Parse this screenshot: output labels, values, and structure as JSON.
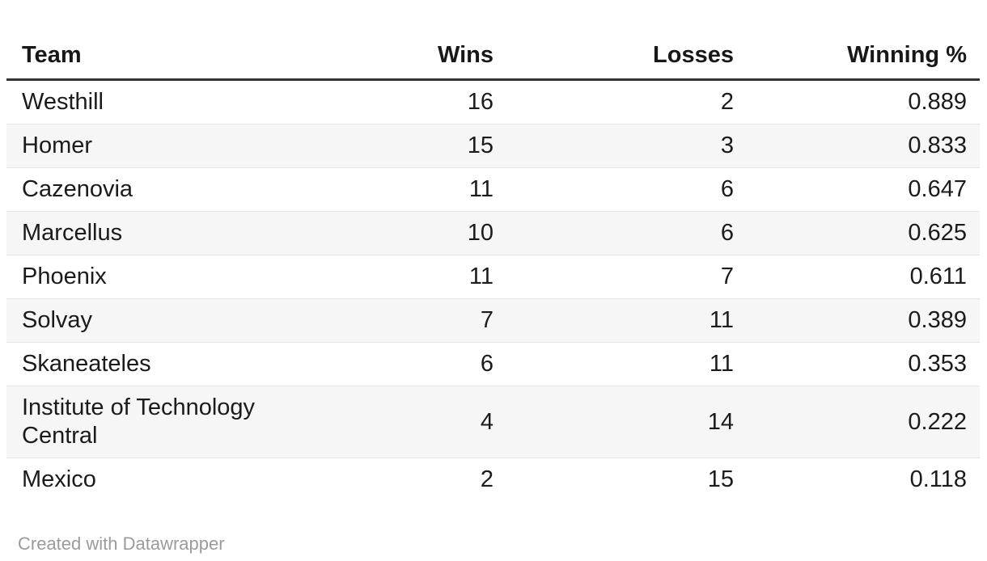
{
  "chart_data": {
    "type": "table",
    "columns": [
      "Team",
      "Wins",
      "Losses",
      "Winning %"
    ],
    "rows": [
      {
        "team": "Westhill",
        "wins": "16",
        "losses": "2",
        "winning_pct": "0.889"
      },
      {
        "team": "Homer",
        "wins": "15",
        "losses": "3",
        "winning_pct": "0.833"
      },
      {
        "team": "Cazenovia",
        "wins": "11",
        "losses": "6",
        "winning_pct": "0.647"
      },
      {
        "team": "Marcellus",
        "wins": "10",
        "losses": "6",
        "winning_pct": "0.625"
      },
      {
        "team": "Phoenix",
        "wins": "11",
        "losses": "7",
        "winning_pct": "0.611"
      },
      {
        "team": "Solvay",
        "wins": "7",
        "losses": "11",
        "winning_pct": "0.389"
      },
      {
        "team": "Skaneateles",
        "wins": "6",
        "losses": "11",
        "winning_pct": "0.353"
      },
      {
        "team": "Institute of Technology Central",
        "wins": "4",
        "losses": "14",
        "winning_pct": "0.222"
      },
      {
        "team": "Mexico",
        "wins": "2",
        "losses": "15",
        "winning_pct": "0.118"
      }
    ],
    "layout_hints": {
      "zebra_striping": true,
      "numeric_columns_right_aligned": true,
      "header_rule": true
    }
  },
  "footer": {
    "credit_text": "Created with Datawrapper"
  },
  "colors": {
    "text": "#1b1b1b",
    "header_text": "#181818",
    "header_rule": "#333333",
    "row_stripe": "#f6f6f6",
    "row_divider": "#e4e4e4",
    "footer_text": "#9b9b9b",
    "background": "#ffffff"
  }
}
